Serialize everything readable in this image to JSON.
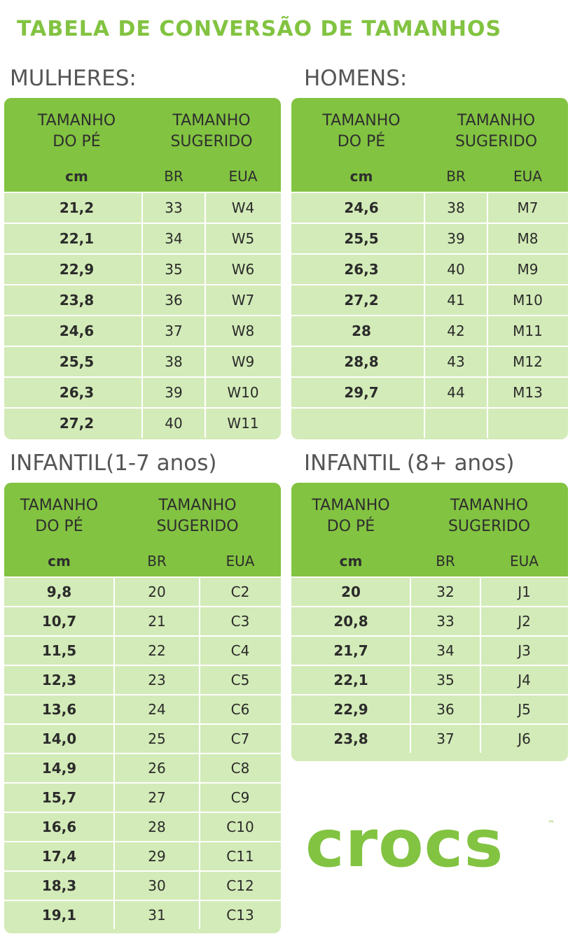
{
  "title": "TABELA DE CONVERSÃO DE TAMANHOS",
  "header_labels": {
    "foot_size": "TAMANHO\nDO PÉ",
    "suggested_size": "TAMANHO\nSUGERIDO",
    "cm": "cm",
    "br": "BR",
    "eua": "EUA"
  },
  "tables": [
    {
      "id": "mulheres",
      "label": "MULHERES:",
      "rows": [
        [
          "21,2",
          "33",
          "W4"
        ],
        [
          "22,1",
          "34",
          "W5"
        ],
        [
          "22,9",
          "35",
          "W6"
        ],
        [
          "23,8",
          "36",
          "W7"
        ],
        [
          "24,6",
          "37",
          "W8"
        ],
        [
          "25,5",
          "38",
          "W9"
        ],
        [
          "26,3",
          "39",
          "W10"
        ],
        [
          "27,2",
          "40",
          "W11"
        ]
      ]
    },
    {
      "id": "homens",
      "label": "HOMENS:",
      "rows": [
        [
          "24,6",
          "38",
          "M7"
        ],
        [
          "25,5",
          "39",
          "M8"
        ],
        [
          "26,3",
          "40",
          "M9"
        ],
        [
          "27,2",
          "41",
          "M10"
        ],
        [
          "28",
          "42",
          "M11"
        ],
        [
          "28,8",
          "43",
          "M12"
        ],
        [
          "29,7",
          "44",
          "M13"
        ]
      ]
    },
    {
      "id": "infantil-1-7",
      "label": "INFANTIL(1-7 anos)",
      "rows": [
        [
          "9,8",
          "20",
          "C2"
        ],
        [
          "10,7",
          "21",
          "C3"
        ],
        [
          "11,5",
          "22",
          "C4"
        ],
        [
          "12,3",
          "23",
          "C5"
        ],
        [
          "13,6",
          "24",
          "C6"
        ],
        [
          "14,0",
          "25",
          "C7"
        ],
        [
          "14,9",
          "26",
          "C8"
        ],
        [
          "15,7",
          "27",
          "C9"
        ],
        [
          "16,6",
          "28",
          "C10"
        ],
        [
          "17,4",
          "29",
          "C11"
        ],
        [
          "18,3",
          "30",
          "C12"
        ],
        [
          "19,1",
          "31",
          "C13"
        ]
      ]
    },
    {
      "id": "infantil-8",
      "label": "INFANTIL (8+ anos)",
      "rows": [
        [
          "20",
          "32",
          "J1"
        ],
        [
          "20,8",
          "33",
          "J2"
        ],
        [
          "21,7",
          "34",
          "J3"
        ],
        [
          "22,1",
          "35",
          "J4"
        ],
        [
          "22,9",
          "36",
          "J5"
        ],
        [
          "23,8",
          "37",
          "J6"
        ]
      ]
    }
  ],
  "logo": {
    "text": "crocs",
    "trademark": "™"
  },
  "colors": {
    "brand_green": "#82c341",
    "light_green": "#d3ebb8",
    "divider": "#ffffff"
  }
}
